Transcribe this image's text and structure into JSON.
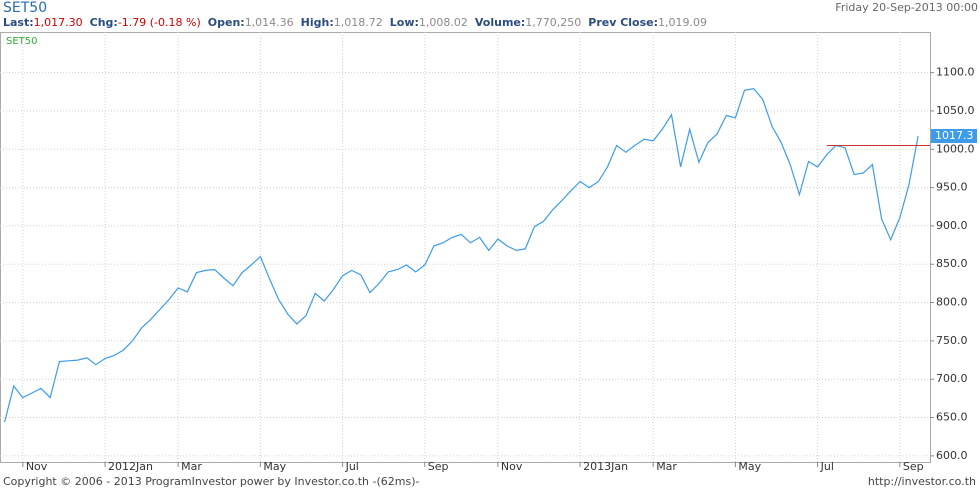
{
  "header": {
    "title": "SET50",
    "date": "Friday 20-Sep-2013 00:00",
    "quote": [
      {
        "label": "Last:",
        "value": "1,017.30"
      },
      {
        "label": "Chg:",
        "value": "-1.79 (-0.18 %)"
      },
      {
        "label": "Open:",
        "value": "1,014.36"
      },
      {
        "label": "High:",
        "value": "1,018.72"
      },
      {
        "label": "Low:",
        "value": "1,008.02"
      },
      {
        "label": "Volume:",
        "value": "1,770,250"
      },
      {
        "label": "Prev Close:",
        "value": "1,019.09"
      }
    ]
  },
  "chart_data": {
    "type": "line",
    "legend_label": "SET50",
    "series": [
      {
        "name": "SET50",
        "color": "#3d9be9",
        "values": [
          644,
          691,
          676,
          682,
          688,
          676,
          723,
          724,
          725,
          728,
          719,
          727,
          731,
          738,
          750,
          767,
          778,
          791,
          804,
          819,
          814,
          839,
          842,
          843,
          832,
          822,
          839,
          849,
          860,
          831,
          804,
          785,
          772,
          783,
          812,
          802,
          817,
          835,
          842,
          836,
          813,
          825,
          840,
          843,
          849,
          840,
          849,
          874,
          878,
          885,
          889,
          878,
          885,
          868,
          883,
          874,
          868,
          870,
          899,
          906,
          921,
          933,
          946,
          958,
          950,
          958,
          977,
          1005,
          996,
          1005,
          1013,
          1011,
          1026,
          1045,
          977,
          1026,
          983,
          1009,
          1020,
          1044,
          1041,
          1077,
          1079,
          1065,
          1030,
          1009,
          980,
          941,
          984,
          977,
          993,
          1005,
          1002,
          967,
          969,
          980,
          909,
          882,
          911,
          954,
          1017.3
        ]
      }
    ],
    "last_value_label": "1017.3",
    "reference_line": {
      "value": 1005,
      "start": 90,
      "color": "#cc3333"
    },
    "ylim": [
      592,
      1153
    ],
    "yticks": [
      {
        "value": 600,
        "label": "600.0"
      },
      {
        "value": 650,
        "label": "650.0"
      },
      {
        "value": 700,
        "label": "700.0"
      },
      {
        "value": 750,
        "label": "750.0"
      },
      {
        "value": 800,
        "label": "800.0"
      },
      {
        "value": 850,
        "label": "850.0"
      },
      {
        "value": 900,
        "label": "900.0"
      },
      {
        "value": 950,
        "label": "950.0"
      },
      {
        "value": 1000,
        "label": "1000.0"
      },
      {
        "value": 1050,
        "label": "1050.0"
      },
      {
        "value": 1100,
        "label": "1100.0"
      }
    ],
    "xlim": [
      -0.5,
      101.3
    ],
    "xticks": [
      {
        "value": 2,
        "label": "Nov"
      },
      {
        "value": 11,
        "label": "2012Jan"
      },
      {
        "value": 19,
        "label": "Mar"
      },
      {
        "value": 28,
        "label": "May"
      },
      {
        "value": 37,
        "label": "Jul"
      },
      {
        "value": 46,
        "label": "Sep"
      },
      {
        "value": 54,
        "label": "Nov"
      },
      {
        "value": 63,
        "label": "2013Jan"
      },
      {
        "value": 71,
        "label": "Mar"
      },
      {
        "value": 80,
        "label": "May"
      },
      {
        "value": 89,
        "label": "Jul"
      },
      {
        "value": 98,
        "label": "Sep"
      }
    ],
    "grid": true
  },
  "footer": {
    "copyright": "Copyright © 2006 - 2013 ProgramInvestor power by Investor.co.th -(62ms)-",
    "url": "http://investor.co.th"
  }
}
